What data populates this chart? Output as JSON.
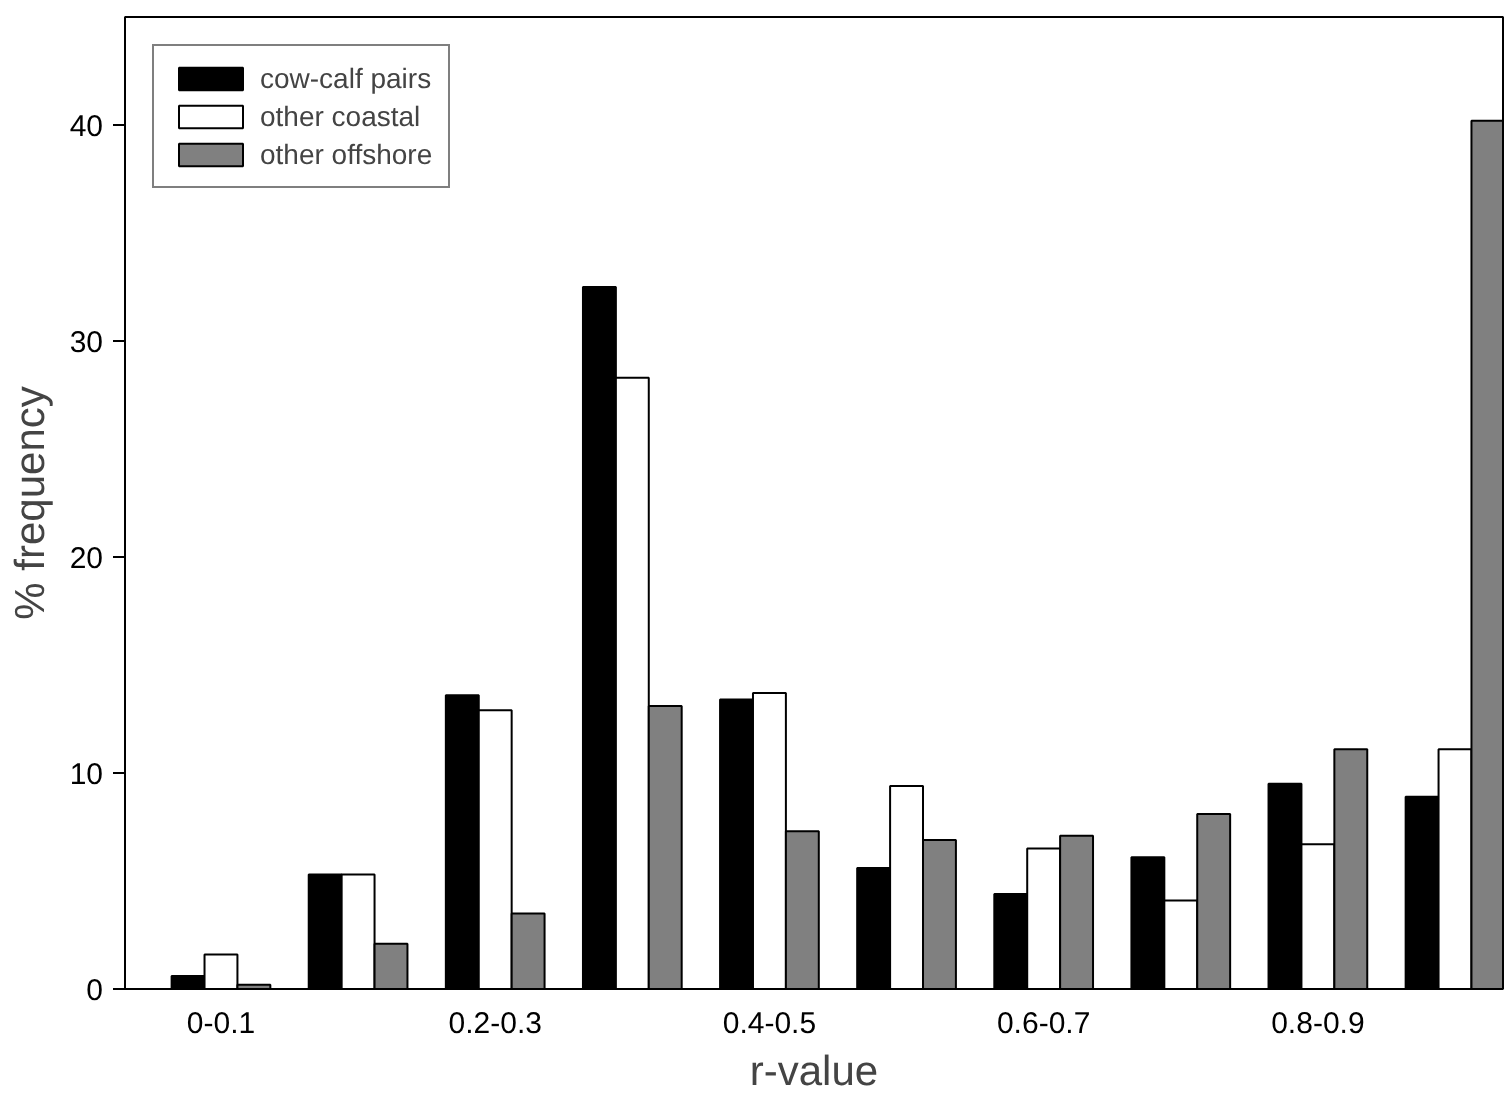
{
  "chart_data": {
    "type": "bar",
    "xlabel": "r-value",
    "ylabel": "% frequency",
    "categories": [
      "0-0.1",
      null,
      "0.2-0.3",
      null,
      "0.4-0.5",
      null,
      "0.6-0.7",
      null,
      "0.8-0.9",
      null
    ],
    "series": [
      {
        "name": "cow-calf pairs",
        "color": "#000000",
        "values": [
          0.6,
          5.3,
          13.6,
          32.5,
          13.4,
          5.6,
          4.4,
          6.1,
          9.5,
          8.9
        ]
      },
      {
        "name": "other coastal",
        "color": "#ffffff",
        "values": [
          1.6,
          5.3,
          12.9,
          28.3,
          13.7,
          9.4,
          6.5,
          4.1,
          6.7,
          11.1
        ]
      },
      {
        "name": "other offshore",
        "color": "#808080",
        "values": [
          0.2,
          2.1,
          3.5,
          13.1,
          7.3,
          6.9,
          7.1,
          8.1,
          11.1,
          40.2
        ]
      }
    ],
    "ylim": [
      0,
      45
    ],
    "yticks": [
      0,
      10,
      20,
      30,
      40
    ],
    "grid": false,
    "legend": "top left"
  }
}
